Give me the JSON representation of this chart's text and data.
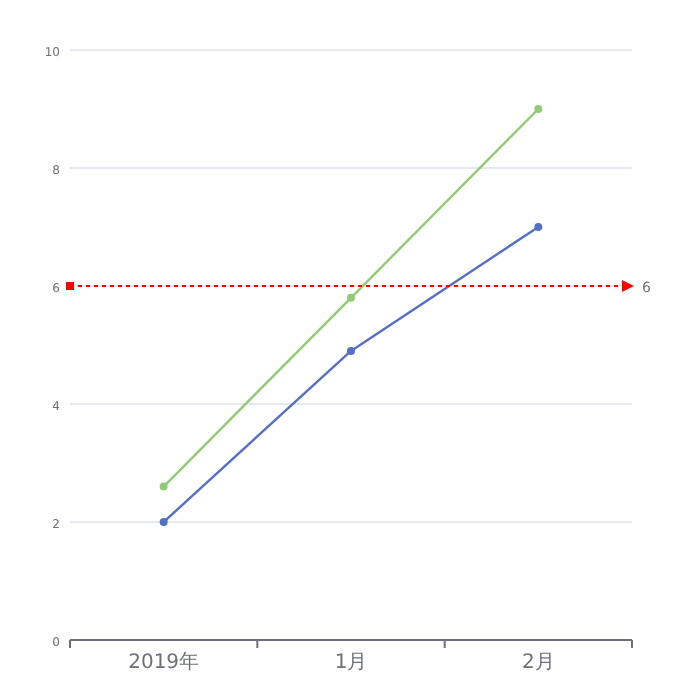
{
  "chart_data": {
    "type": "line",
    "categories": [
      "2019年",
      "1月",
      "2月"
    ],
    "series": [
      {
        "color": "#5470c6",
        "values": [
          2,
          4.9,
          7
        ]
      },
      {
        "color": "#91cc75",
        "values": [
          2.6,
          5.8,
          9
        ]
      }
    ],
    "ylim": [
      0,
      10
    ],
    "yticks": [
      0,
      2,
      4,
      6,
      8,
      10
    ],
    "grid": "y",
    "marker": "circle",
    "line_style": "solid",
    "ref_lines": [
      {
        "axis": "y",
        "value": 6,
        "label": "6",
        "color": "#ff0000",
        "line_style": "dotted"
      }
    ]
  }
}
